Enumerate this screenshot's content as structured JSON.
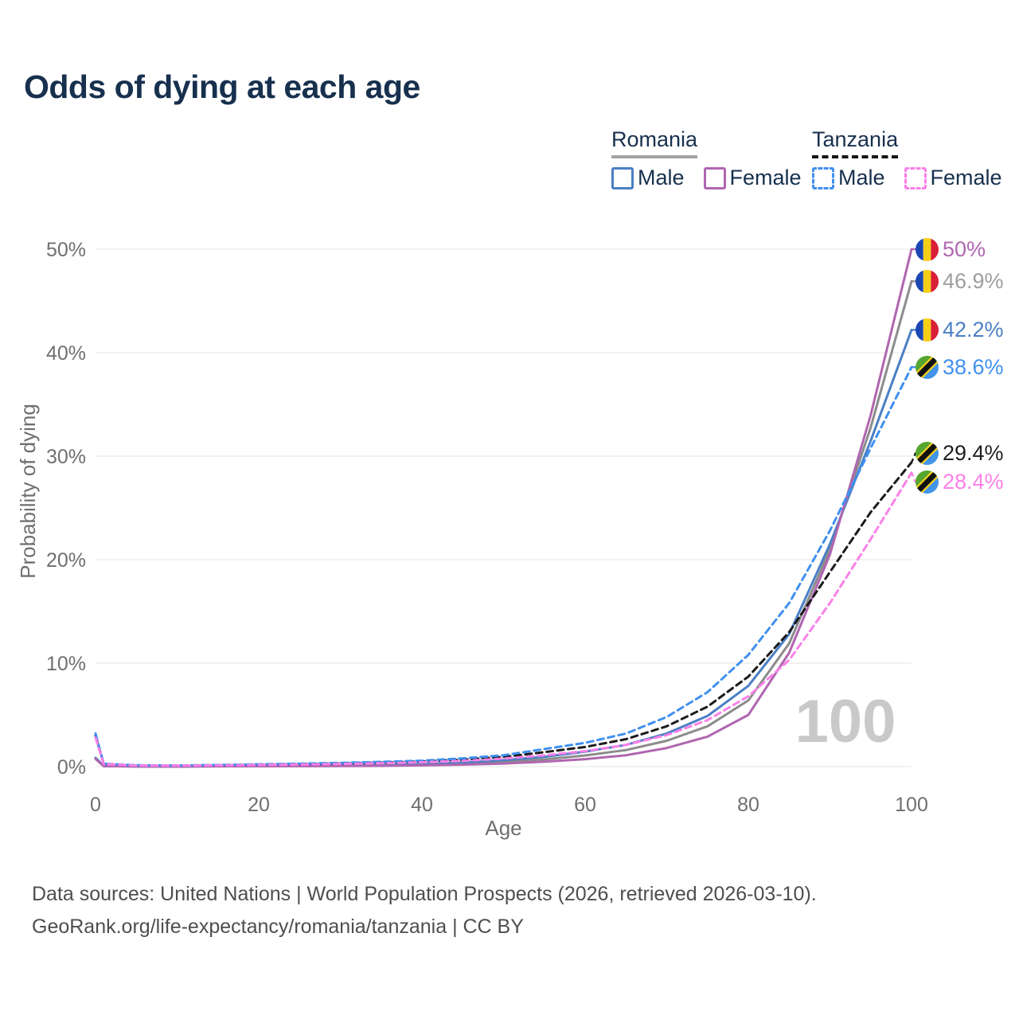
{
  "title": "Odds of dying at each age",
  "legend": {
    "groups": [
      {
        "name": "Romania",
        "line_style": "solid",
        "underline_color": "#a3a3a3",
        "items": [
          {
            "label": "Male",
            "color": "#4b7fc4",
            "dash": false
          },
          {
            "label": "Female",
            "color": "#b066b0",
            "dash": false
          }
        ]
      },
      {
        "name": "Tanzania",
        "line_style": "dashed",
        "underline_color": "#151515",
        "items": [
          {
            "label": "Male",
            "color": "#4090f0",
            "dash": true
          },
          {
            "label": "Female",
            "color": "#fb80e8",
            "dash": true
          }
        ]
      }
    ]
  },
  "watermark_age_counter": "100",
  "footer": {
    "line1": "Data sources: United Nations | World Population Prospects (2026, retrieved 2026-03-10).",
    "line2": "GeoRank.org/life-expectancy/romania/tanzania | CC BY"
  },
  "chart_data": {
    "type": "line",
    "title": "Odds of dying at each age",
    "xlabel": "Age",
    "ylabel": "Probability of dying",
    "xlim": [
      0,
      100
    ],
    "ylim": [
      0,
      50
    ],
    "x_ticks": [
      0,
      20,
      40,
      60,
      80,
      100
    ],
    "y_ticks": [
      0,
      10,
      20,
      30,
      40,
      50
    ],
    "y_tick_labels": [
      "0%",
      "10%",
      "20%",
      "30%",
      "40%",
      "50%"
    ],
    "grid": "horizontal",
    "ages": [
      0,
      1,
      5,
      10,
      15,
      20,
      25,
      30,
      35,
      40,
      45,
      50,
      55,
      60,
      65,
      70,
      75,
      80,
      85,
      90,
      95,
      100
    ],
    "series": [
      {
        "name": "Romania Both sexes",
        "country": "Romania",
        "sex": "Both",
        "color": "#8c8c8c",
        "label_color": "#9e9e9e",
        "dash": false,
        "flag": "romania",
        "end_label": "46.9%",
        "end_value": 46.9,
        "values": [
          0.8,
          0.055,
          0.02,
          0.015,
          0.04,
          0.06,
          0.08,
          0.1,
          0.13,
          0.19,
          0.3,
          0.46,
          0.7,
          1.08,
          1.6,
          2.5,
          3.9,
          6.4,
          11.9,
          21.0,
          32.8,
          46.9
        ]
      },
      {
        "name": "Romania Male",
        "country": "Romania",
        "sex": "Male",
        "color": "#4b7fc4",
        "label_color": "#4b7fc4",
        "dash": false,
        "flag": "romania",
        "end_label": "42.2%",
        "end_value": 42.2,
        "values": [
          0.85,
          0.06,
          0.02,
          0.02,
          0.05,
          0.08,
          0.1,
          0.13,
          0.18,
          0.25,
          0.4,
          0.62,
          0.95,
          1.45,
          2.1,
          3.2,
          4.9,
          7.8,
          12.8,
          21.5,
          31.5,
          42.2
        ]
      },
      {
        "name": "Romania Female",
        "country": "Romania",
        "sex": "Female",
        "color": "#b066b0",
        "label_color": "#b066b0",
        "dash": false,
        "flag": "romania",
        "end_label": "50%",
        "end_value": 50.0,
        "values": [
          0.75,
          0.05,
          0.02,
          0.01,
          0.03,
          0.04,
          0.05,
          0.06,
          0.08,
          0.12,
          0.19,
          0.3,
          0.48,
          0.72,
          1.1,
          1.8,
          2.9,
          5.0,
          11.0,
          20.5,
          34.0,
          50.0
        ]
      },
      {
        "name": "Tanzania Both sexes",
        "country": "Tanzania",
        "sex": "Both",
        "color": "#1b1b1b",
        "label_color": "#1f1f1f",
        "dash": true,
        "flag": "tanzania",
        "end_label": "29.4%",
        "end_value": 29.4,
        "values": [
          3.0,
          0.26,
          0.12,
          0.1,
          0.14,
          0.19,
          0.25,
          0.31,
          0.4,
          0.5,
          0.68,
          0.94,
          1.4,
          1.9,
          2.65,
          3.9,
          5.8,
          8.7,
          13.0,
          18.8,
          24.6,
          29.4
        ]
      },
      {
        "name": "Tanzania Male",
        "country": "Tanzania",
        "sex": "Male",
        "color": "#4090f0",
        "label_color": "#4090f0",
        "dash": true,
        "flag": "tanzania",
        "end_label": "38.6%",
        "end_value": 38.6,
        "values": [
          3.2,
          0.28,
          0.13,
          0.11,
          0.16,
          0.22,
          0.29,
          0.36,
          0.46,
          0.58,
          0.8,
          1.1,
          1.7,
          2.3,
          3.2,
          4.8,
          7.2,
          10.8,
          15.8,
          22.8,
          30.8,
          38.6
        ]
      },
      {
        "name": "Tanzania Female",
        "country": "Tanzania",
        "sex": "Female",
        "color": "#fb80e8",
        "label_color": "#fb80e8",
        "dash": true,
        "flag": "tanzania",
        "end_label": "28.4%",
        "end_value": 28.4,
        "values": [
          2.8,
          0.24,
          0.11,
          0.09,
          0.12,
          0.16,
          0.21,
          0.26,
          0.33,
          0.42,
          0.56,
          0.78,
          1.1,
          1.5,
          2.1,
          3.05,
          4.5,
          6.8,
          10.3,
          15.8,
          22.0,
          28.4
        ]
      }
    ],
    "flag_colors": {
      "romania": {
        "blue": "#1b46b4",
        "yellow": "#f7ce17",
        "red": "#d91e36"
      },
      "tanzania": {
        "green": "#55a630",
        "blue": "#4295e7",
        "yellow": "#f2cf1f",
        "black": "#111111"
      }
    },
    "axis_text_color": "#6f6f6f",
    "grid_color": "#ebebeb",
    "watermark_color": "#c9c9c9"
  }
}
